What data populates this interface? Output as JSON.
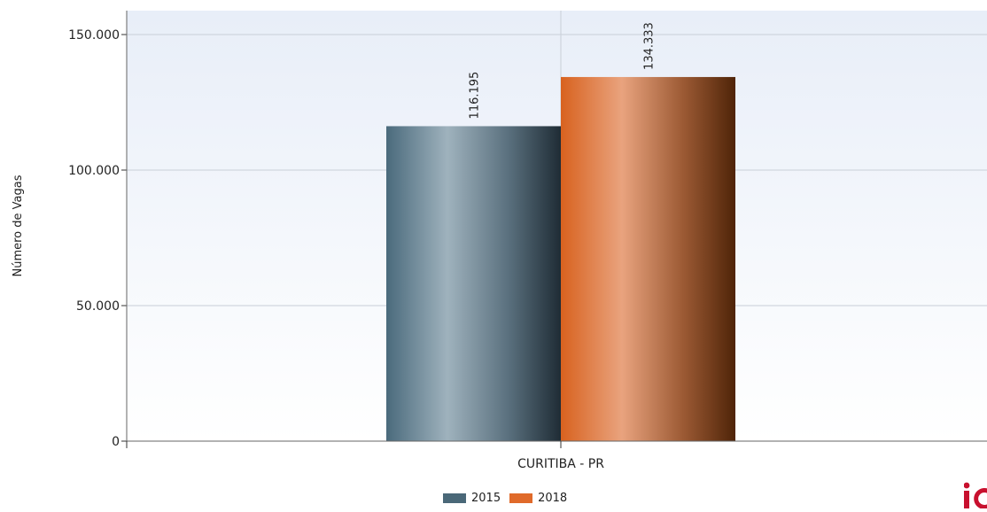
{
  "chart_data": {
    "type": "bar",
    "title": "",
    "xlabel": "",
    "ylabel": "Número de Vagas",
    "categories": [
      "CURITIBA - PR"
    ],
    "series": [
      {
        "name": "2015",
        "values": [
          116195
        ],
        "label": "116.195",
        "color": "#4a6878"
      },
      {
        "name": "2018",
        "values": [
          134333
        ],
        "label": "134.333",
        "color": "#e06a2a"
      }
    ],
    "ylim": [
      0,
      160000
    ],
    "yticks": [
      0,
      50000,
      100000,
      150000
    ],
    "ytick_labels": [
      "0",
      "50.000",
      "100.000",
      "150.000"
    ],
    "grid": true,
    "legend_position": "bottom-center"
  },
  "colors": {
    "bar_2015": "#4a6878",
    "bar_2018": "#e06a2a",
    "logo": "#c8102e"
  },
  "logo": {
    "icon": "brand-logo-icon"
  }
}
